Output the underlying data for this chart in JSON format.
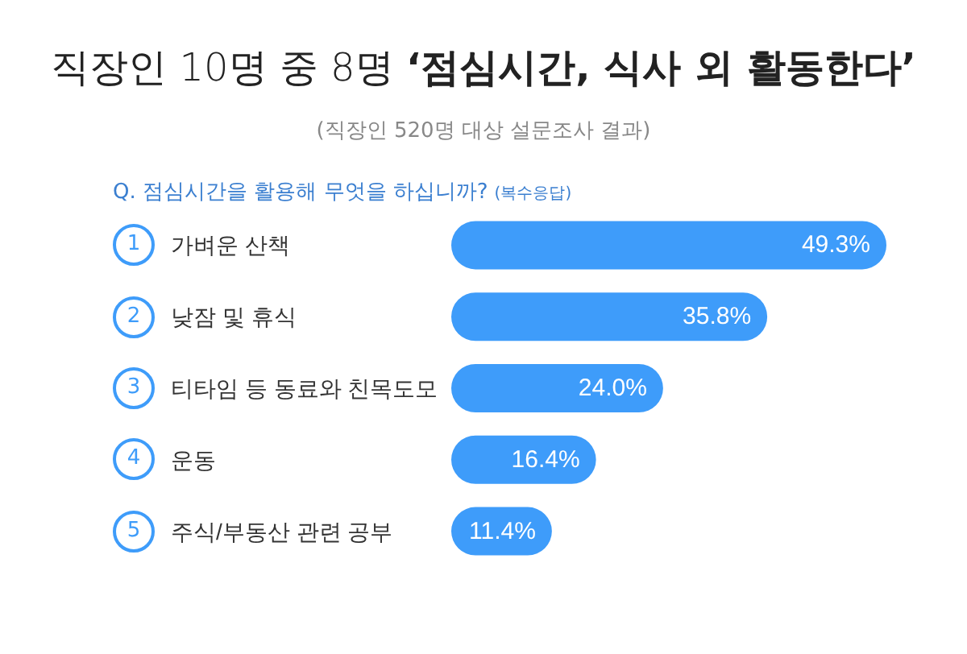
{
  "chart_data": {
    "type": "bar",
    "orientation": "horizontal",
    "title": "직장인 10명 중 8명 ‘점심시간, 식사 외 활동한다’",
    "subtitle": "Q. 점심시간을 활용해 무엇을 하십니까?",
    "annotations": [
      "(직장인 520명 대상 설문조사 결과)",
      "(복수응답)",
      "1",
      "2",
      "3",
      "4",
      "5"
    ],
    "categories": [
      "가벼운 산책",
      "낮잠 및 휴식",
      "티타임 등 동료와 친목도모",
      "운동",
      "주식/부동산 관련 공부"
    ],
    "values": [
      49.3,
      35.8,
      24.0,
      16.4,
      11.4
    ],
    "value_labels": [
      "49.3%",
      "35.8%",
      "24.0%",
      "16.4%",
      "11.4%"
    ],
    "color": "#3e9cfa"
  }
}
